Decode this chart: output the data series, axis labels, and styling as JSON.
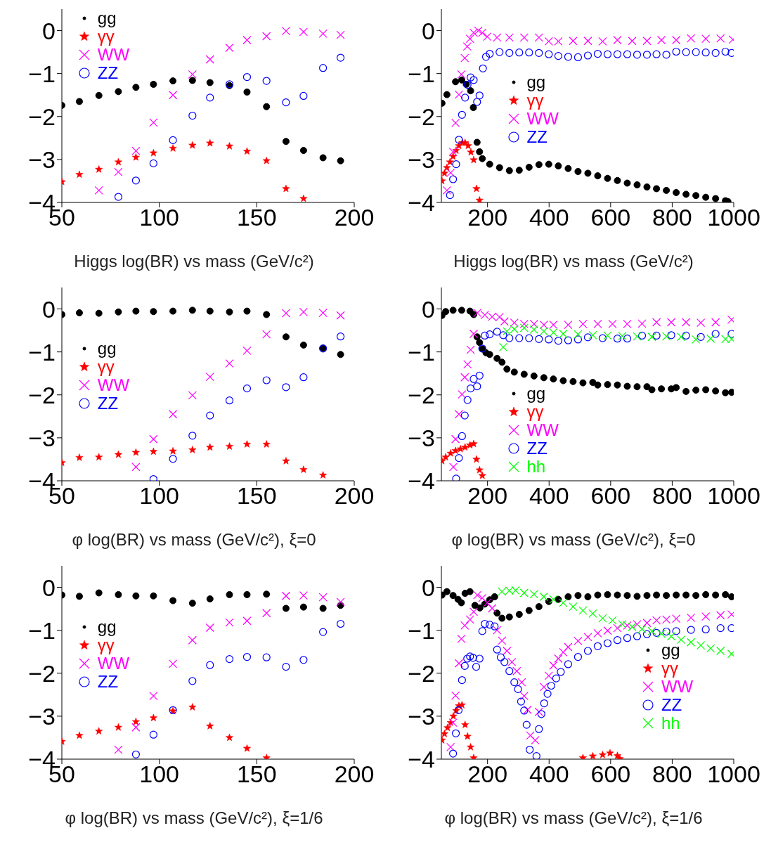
{
  "chart_data": [
    {
      "type": "scatter",
      "xlabel": "Higgs log(BR) vs mass (GeV/c²)",
      "x": [
        50,
        59,
        69,
        79,
        88,
        97,
        107,
        117,
        126,
        136,
        145,
        155,
        165,
        174,
        184,
        193
      ],
      "xlim": [
        50,
        200
      ],
      "xticks": [
        50,
        100,
        150,
        200
      ],
      "ylim": [
        -4,
        0.5
      ],
      "yticks": [
        0,
        -1,
        -2,
        -3,
        -4
      ],
      "legend": "top left",
      "series": [
        {
          "name": "gg",
          "color": "#000000",
          "marker": "circle",
          "values": [
            -1.74,
            -1.65,
            -1.51,
            -1.42,
            -1.32,
            -1.25,
            -1.17,
            -1.16,
            -1.21,
            -1.28,
            -1.43,
            -1.77,
            -2.58,
            -2.79,
            -2.96,
            -3.03
          ]
        },
        {
          "name": "γγ",
          "color": "#ff0000",
          "marker": "star",
          "values": [
            -3.52,
            -3.35,
            -3.23,
            -3.06,
            -2.95,
            -2.85,
            -2.74,
            -2.67,
            -2.62,
            -2.69,
            -2.81,
            -3.03,
            -3.68,
            -3.91,
            null,
            null
          ]
        },
        {
          "name": "WW",
          "color": "#ff00ff",
          "marker": "cross",
          "values": [
            null,
            null,
            -3.72,
            -3.29,
            -2.8,
            -2.14,
            -1.5,
            -1.02,
            -0.67,
            -0.4,
            -0.22,
            -0.13,
            -0.01,
            -0.03,
            -0.07,
            -0.1
          ]
        },
        {
          "name": "ZZ",
          "color": "#0000ff",
          "values": [
            null,
            null,
            null,
            -3.87,
            -3.49,
            -3.09,
            -2.55,
            -1.98,
            -1.56,
            -1.25,
            -1.08,
            -1.17,
            -1.67,
            -1.52,
            -0.87,
            -0.63
          ]
        }
      ]
    },
    {
      "type": "scatter",
      "xlabel": "Higgs log(BR) vs mass (GeV/c²)",
      "xlim": [
        50,
        1000
      ],
      "xticks": [
        200,
        400,
        600,
        800,
        1000
      ],
      "ylim": [
        -4,
        0.5
      ],
      "yticks": [
        0,
        -1,
        -2,
        -3,
        -4
      ],
      "legend": "center left",
      "series": [
        {
          "name": "gg",
          "color": "#000000",
          "marker": "circle",
          "x": [
            52,
            68,
            96,
            116,
            131,
            145,
            154,
            166,
            174,
            183,
            207,
            239,
            271,
            303,
            335,
            367,
            399,
            430,
            462,
            494,
            526,
            558,
            590,
            622,
            654,
            686,
            718,
            749,
            781,
            813,
            845,
            877,
            909,
            941,
            973,
            981
          ],
          "values": [
            -1.69,
            -1.49,
            -1.19,
            -1.15,
            -1.25,
            -1.4,
            -1.79,
            -2.6,
            -2.82,
            -2.98,
            -3.11,
            -3.19,
            -3.26,
            -3.25,
            -3.18,
            -3.12,
            -3.11,
            -3.15,
            -3.21,
            -3.28,
            -3.32,
            -3.38,
            -3.44,
            -3.49,
            -3.55,
            -3.59,
            -3.64,
            -3.68,
            -3.72,
            -3.77,
            -3.81,
            -3.84,
            -3.88,
            -3.91,
            -3.96,
            -3.98
          ]
        },
        {
          "name": "γγ",
          "color": "#ff0000",
          "marker": "star",
          "x": [
            52,
            60,
            68,
            78,
            88,
            98,
            107,
            118,
            127,
            137,
            146,
            155,
            164,
            174
          ],
          "values": [
            -3.5,
            -3.32,
            -3.19,
            -3.06,
            -2.93,
            -2.79,
            -2.68,
            -2.61,
            -2.61,
            -2.68,
            -2.83,
            -3.01,
            -3.68,
            -3.95
          ]
        },
        {
          "name": "WW",
          "color": "#ff00ff",
          "marker": "cross",
          "x": [
            68,
            80,
            88,
            96,
            107,
            115,
            126,
            134,
            143,
            155,
            170,
            183,
            199,
            231,
            271,
            319,
            367,
            399,
            430,
            478,
            526,
            574,
            622,
            670,
            718,
            765,
            813,
            861,
            909,
            957,
            997
          ],
          "values": [
            -3.72,
            -3.31,
            -2.82,
            -2.15,
            -1.49,
            -1.02,
            -0.64,
            -0.37,
            -0.19,
            -0.05,
            0,
            -0.05,
            -0.14,
            -0.16,
            -0.16,
            -0.16,
            -0.16,
            -0.25,
            -0.25,
            -0.24,
            -0.24,
            -0.25,
            -0.22,
            -0.24,
            -0.24,
            -0.22,
            -0.22,
            -0.18,
            -0.19,
            -0.18,
            -0.21
          ]
        },
        {
          "name": "ZZ",
          "color": "#0000ff",
          "x": [
            78,
            88,
            98,
            107,
            117,
            127,
            135,
            145,
            155,
            166,
            174,
            185,
            195,
            207,
            239,
            271,
            303,
            335,
            367,
            399,
            430,
            462,
            494,
            526,
            558,
            590,
            622,
            654,
            686,
            718,
            749,
            781,
            813,
            845,
            877,
            909,
            941,
            973,
            993
          ],
          "values": [
            -3.83,
            -3.46,
            -3.11,
            -2.54,
            -1.96,
            -1.56,
            -1.26,
            -1.09,
            -1.15,
            -1.66,
            -1.51,
            -0.88,
            -0.61,
            -0.54,
            -0.5,
            -0.52,
            -0.51,
            -0.51,
            -0.52,
            -0.55,
            -0.59,
            -0.61,
            -0.62,
            -0.58,
            -0.54,
            -0.55,
            -0.55,
            -0.55,
            -0.56,
            -0.56,
            -0.55,
            -0.56,
            -0.49,
            -0.5,
            -0.5,
            -0.51,
            -0.52,
            -0.49,
            -0.52
          ]
        }
      ]
    },
    {
      "type": "scatter",
      "xlabel": "φ log(BR) vs mass (GeV/c²), ξ=0",
      "x": [
        50,
        59,
        69,
        79,
        88,
        97,
        107,
        117,
        126,
        136,
        145,
        155,
        165,
        174,
        184,
        193
      ],
      "xlim": [
        50,
        200
      ],
      "xticks": [
        50,
        100,
        150,
        200
      ],
      "ylim": [
        -4,
        0.5
      ],
      "yticks": [
        0,
        -1,
        -2,
        -3,
        -4
      ],
      "legend": "left",
      "series": [
        {
          "name": "gg",
          "color": "#000000",
          "marker": "circle",
          "values": [
            -0.13,
            -0.09,
            -0.1,
            -0.07,
            -0.05,
            -0.06,
            -0.05,
            -0.03,
            -0.05,
            -0.07,
            -0.05,
            -0.13,
            -0.65,
            -0.84,
            -0.91,
            -1.06
          ]
        },
        {
          "name": "γγ",
          "color": "#ff0000",
          "marker": "star",
          "values": [
            -3.58,
            -3.46,
            -3.45,
            -3.39,
            -3.34,
            -3.32,
            -3.31,
            -3.28,
            -3.22,
            -3.2,
            -3.15,
            -3.15,
            -3.54,
            -3.74,
            -3.87,
            null
          ]
        },
        {
          "name": "WW",
          "color": "#ff00ff",
          "marker": "cross",
          "values": [
            null,
            null,
            null,
            null,
            -3.68,
            -3.03,
            -2.45,
            -2.01,
            -1.58,
            -1.27,
            -0.97,
            -0.59,
            -0.1,
            -0.07,
            -0.09,
            -0.15
          ]
        },
        {
          "name": "ZZ",
          "color": "#0000ff",
          "values": [
            null,
            null,
            null,
            null,
            null,
            -3.96,
            -3.49,
            -2.95,
            -2.48,
            -2.13,
            -1.85,
            -1.66,
            -1.82,
            -1.59,
            -0.92,
            -0.64
          ]
        }
      ]
    },
    {
      "type": "scatter",
      "xlabel": "φ log(BR) vs mass (GeV/c²), ξ=0",
      "xlim": [
        50,
        1000
      ],
      "xticks": [
        200,
        400,
        600,
        800,
        1000
      ],
      "ylim": [
        -4,
        0.5
      ],
      "yticks": [
        0,
        -1,
        -2,
        -3,
        -4
      ],
      "legend": "bottom left",
      "series": [
        {
          "name": "gg",
          "color": "#000000",
          "marker": "circle",
          "x": [
            52,
            64,
            88,
            116,
            143,
            155,
            166,
            174,
            183,
            195,
            207,
            231,
            247,
            263,
            287,
            319,
            351,
            383,
            414,
            446,
            478,
            510,
            542,
            558,
            590,
            622,
            654,
            686,
            718,
            734,
            765,
            797,
            813,
            845,
            877,
            909,
            941,
            973,
            993
          ],
          "values": [
            -0.15,
            -0.06,
            -0.03,
            -0.03,
            -0.05,
            -0.13,
            -0.65,
            -0.78,
            -0.93,
            -1.02,
            -1.06,
            -1.15,
            -1.24,
            -1.4,
            -1.47,
            -1.52,
            -1.56,
            -1.6,
            -1.63,
            -1.67,
            -1.69,
            -1.72,
            -1.71,
            -1.77,
            -1.76,
            -1.77,
            -1.8,
            -1.81,
            -1.81,
            -1.88,
            -1.86,
            -1.86,
            -1.83,
            -1.92,
            -1.89,
            -1.88,
            -1.91,
            -1.95,
            -1.94
          ]
        },
        {
          "name": "γγ",
          "color": "#ff0000",
          "marker": "star",
          "x": [
            52,
            64,
            80,
            96,
            112,
            127,
            143,
            155,
            164,
            174,
            183
          ],
          "values": [
            -3.54,
            -3.45,
            -3.36,
            -3.3,
            -3.26,
            -3.22,
            -3.17,
            -3.14,
            -3.5,
            -3.75,
            -3.88
          ]
        },
        {
          "name": "WW",
          "color": "#ff00ff",
          "marker": "cross",
          "x": [
            89,
            96,
            107,
            117,
            126,
            135,
            145,
            155,
            167,
            191,
            215,
            239,
            255,
            287,
            319,
            351,
            383,
            414,
            462,
            510,
            558,
            606,
            654,
            702,
            749,
            797,
            845,
            893,
            941,
            993
          ],
          "values": [
            -3.68,
            -3.03,
            -2.45,
            -1.99,
            -1.59,
            -1.29,
            -0.95,
            -0.58,
            -0.09,
            -0.14,
            -0.18,
            -0.19,
            -0.29,
            -0.32,
            -0.35,
            -0.35,
            -0.37,
            -0.37,
            -0.37,
            -0.35,
            -0.35,
            -0.35,
            -0.35,
            -0.34,
            -0.31,
            -0.31,
            -0.31,
            -0.32,
            -0.31,
            -0.25
          ]
        },
        {
          "name": "ZZ",
          "color": "#0000ff",
          "x": [
            98,
            107,
            117,
            126,
            135,
            145,
            155,
            166,
            174,
            183,
            191,
            207,
            231,
            251,
            271,
            303,
            335,
            367,
            399,
            430,
            462,
            494,
            526,
            574,
            622,
            654,
            702,
            749,
            797,
            845,
            893,
            941,
            993
          ],
          "values": [
            -3.95,
            -3.47,
            -2.96,
            -2.48,
            -2.12,
            -1.85,
            -1.63,
            -1.8,
            -1.55,
            -0.92,
            -0.62,
            -0.59,
            -0.53,
            -0.61,
            -0.68,
            -0.68,
            -0.68,
            -0.7,
            -0.71,
            -0.74,
            -0.73,
            -0.71,
            -0.66,
            -0.68,
            -0.69,
            -0.69,
            -0.62,
            -0.62,
            -0.61,
            -0.62,
            -0.65,
            -0.58,
            -0.58
          ]
        },
        {
          "name": "hh",
          "color": "#00ff00",
          "marker": "cross",
          "x": [
            251,
            263,
            287,
            319,
            351,
            383,
            414,
            446,
            494,
            542,
            590,
            638,
            686,
            734,
            781,
            829,
            877,
            925,
            973,
            993
          ],
          "values": [
            -0.89,
            -0.52,
            -0.47,
            -0.44,
            -0.48,
            -0.52,
            -0.55,
            -0.58,
            -0.59,
            -0.61,
            -0.62,
            -0.63,
            -0.64,
            -0.65,
            -0.64,
            -0.65,
            -0.71,
            -0.69,
            -0.7,
            -0.7
          ]
        }
      ]
    },
    {
      "type": "scatter",
      "xlabel": "φ log(BR) vs mass (GeV/c²), ξ=1/6",
      "x": [
        50,
        59,
        69,
        79,
        88,
        97,
        107,
        117,
        126,
        136,
        145,
        155,
        165,
        174,
        184,
        193
      ],
      "xlim": [
        50,
        200
      ],
      "xticks": [
        50,
        100,
        150,
        200
      ],
      "ylim": [
        -4,
        0.5
      ],
      "yticks": [
        0,
        -1,
        -2,
        -3,
        -4
      ],
      "legend": "left",
      "series": [
        {
          "name": "gg",
          "color": "#000000",
          "marker": "circle",
          "values": [
            -0.18,
            -0.21,
            -0.13,
            -0.17,
            -0.2,
            -0.2,
            -0.31,
            -0.37,
            -0.27,
            -0.17,
            -0.17,
            -0.16,
            -0.49,
            -0.46,
            -0.49,
            -0.42
          ]
        },
        {
          "name": "γγ",
          "color": "#ff0000",
          "marker": "star",
          "values": [
            -3.59,
            -3.45,
            -3.35,
            -3.26,
            -3.13,
            -3.04,
            -2.88,
            -2.79,
            -3.23,
            -3.5,
            -3.75,
            -3.97,
            null,
            null,
            null,
            null
          ]
        },
        {
          "name": "WW",
          "color": "#ff00ff",
          "marker": "cross",
          "values": [
            null,
            null,
            null,
            -3.78,
            -3.26,
            -2.53,
            -1.78,
            -1.23,
            -0.94,
            -0.82,
            -0.78,
            -0.6,
            -0.2,
            -0.19,
            -0.23,
            -0.34
          ]
        },
        {
          "name": "ZZ",
          "color": "#0000ff",
          "values": [
            null,
            null,
            null,
            null,
            -3.89,
            -3.43,
            -2.86,
            -2.18,
            -1.81,
            -1.67,
            -1.62,
            -1.63,
            -1.85,
            -1.69,
            -1.04,
            -0.85
          ]
        }
      ]
    },
    {
      "type": "scatter",
      "xlabel": "φ log(BR) vs mass (GeV/c²), ξ=1/6",
      "xlim": [
        50,
        1000
      ],
      "xticks": [
        200,
        400,
        600,
        800,
        1000
      ],
      "ylim": [
        -4,
        0.5
      ],
      "yticks": [
        0,
        -1,
        -2,
        -3,
        -4
      ],
      "legend": "right",
      "series": [
        {
          "name": "gg",
          "color": "#000000",
          "marker": "circle",
          "x": [
            52,
            68,
            88,
            104,
            115,
            127,
            143,
            159,
            175,
            191,
            207,
            223,
            231,
            247,
            271,
            303,
            335,
            367,
            399,
            430,
            462,
            494,
            526,
            558,
            590,
            622,
            654,
            686,
            718,
            749,
            781,
            813,
            845,
            877,
            909,
            941,
            973,
            993
          ],
          "values": [
            -0.18,
            -0.1,
            -0.19,
            -0.28,
            -0.36,
            -0.14,
            -0.1,
            -0.42,
            -0.48,
            -0.39,
            -0.29,
            -0.22,
            -0.6,
            -0.72,
            -0.69,
            -0.63,
            -0.54,
            -0.45,
            -0.33,
            -0.28,
            -0.22,
            -0.19,
            -0.22,
            -0.18,
            -0.17,
            -0.18,
            -0.19,
            -0.21,
            -0.19,
            -0.18,
            -0.19,
            -0.18,
            -0.18,
            -0.19,
            -0.17,
            -0.18,
            -0.17,
            -0.22
          ]
        },
        {
          "name": "γγ",
          "color": "#ff0000",
          "marker": "star",
          "x": [
            52,
            60,
            70,
            80,
            89,
            98,
            107,
            117,
            127,
            135,
            145,
            155,
            510,
            542,
            574,
            598,
            622,
            630
          ],
          "values": [
            -3.56,
            -3.41,
            -3.27,
            -3.15,
            -3.0,
            -2.87,
            -2.76,
            -2.74,
            -3.2,
            -3.47,
            -3.72,
            -3.97,
            -3.97,
            -3.93,
            -3.9,
            -3.86,
            -3.92,
            -3.99
          ]
        },
        {
          "name": "WW",
          "color": "#ff00ff",
          "marker": "cross",
          "x": [
            80,
            88,
            96,
            107,
            115,
            126,
            143,
            155,
            167,
            183,
            199,
            215,
            231,
            247,
            263,
            279,
            295,
            311,
            319,
            330,
            339,
            355,
            367,
            383,
            399,
            414,
            430,
            446,
            462,
            494,
            526,
            558,
            590,
            622,
            654,
            686,
            718,
            749,
            781,
            813,
            861,
            909,
            957,
            993
          ],
          "values": [
            -3.72,
            -3.15,
            -2.52,
            -1.77,
            -1.2,
            -0.89,
            -0.75,
            -0.57,
            -0.18,
            -0.25,
            -0.36,
            -0.49,
            -1.0,
            -1.24,
            -1.48,
            -1.74,
            -1.95,
            -2.21,
            -2.53,
            -2.85,
            -3.45,
            -3.56,
            -2.9,
            -2.32,
            -2.06,
            -1.82,
            -1.66,
            -1.51,
            -1.39,
            -1.25,
            -1.16,
            -1.07,
            -1.01,
            -0.95,
            -0.89,
            -0.86,
            -0.83,
            -0.77,
            -0.75,
            -0.73,
            -0.71,
            -0.68,
            -0.65,
            -0.63
          ]
        },
        {
          "name": "ZZ",
          "color": "#0000ff",
          "x": [
            88,
            97,
            106,
            117,
            126,
            134,
            143,
            153,
            163,
            174,
            183,
            191,
            207,
            223,
            231,
            243,
            255,
            271,
            287,
            299,
            309,
            319,
            327,
            337,
            359,
            367,
            375,
            384,
            395,
            407,
            423,
            438,
            462,
            494,
            526,
            558,
            590,
            622,
            654,
            686,
            718,
            749,
            781,
            813,
            861,
            909,
            957,
            993
          ],
          "values": [
            -3.87,
            -3.4,
            -2.86,
            -2.16,
            -1.83,
            -1.66,
            -1.61,
            -1.64,
            -1.85,
            -1.66,
            -1.02,
            -0.85,
            -0.87,
            -0.91,
            -1.45,
            -1.63,
            -1.74,
            -1.95,
            -2.21,
            -2.37,
            -2.66,
            -2.87,
            -3.2,
            -3.78,
            -3.93,
            -3.3,
            -2.95,
            -2.7,
            -2.48,
            -2.29,
            -2.12,
            -1.97,
            -1.79,
            -1.62,
            -1.48,
            -1.37,
            -1.3,
            -1.23,
            -1.18,
            -1.14,
            -1.09,
            -1.06,
            -1.03,
            -1.02,
            -0.99,
            -0.98,
            -0.95,
            -0.95
          ]
        },
        {
          "name": "hh",
          "color": "#00ff00",
          "marker": "cross",
          "x": [
            247,
            271,
            291,
            319,
            351,
            383,
            414,
            446,
            478,
            510,
            542,
            574,
            606,
            638,
            670,
            702,
            734,
            765,
            797,
            829,
            861,
            893,
            925,
            957,
            993
          ],
          "values": [
            -0.1,
            -0.08,
            -0.07,
            -0.13,
            -0.16,
            -0.22,
            -0.28,
            -0.36,
            -0.45,
            -0.54,
            -0.61,
            -0.72,
            -0.77,
            -0.86,
            -0.92,
            -0.97,
            -1.02,
            -1.08,
            -1.14,
            -1.22,
            -1.28,
            -1.35,
            -1.42,
            -1.48,
            -1.55
          ]
        }
      ]
    }
  ]
}
